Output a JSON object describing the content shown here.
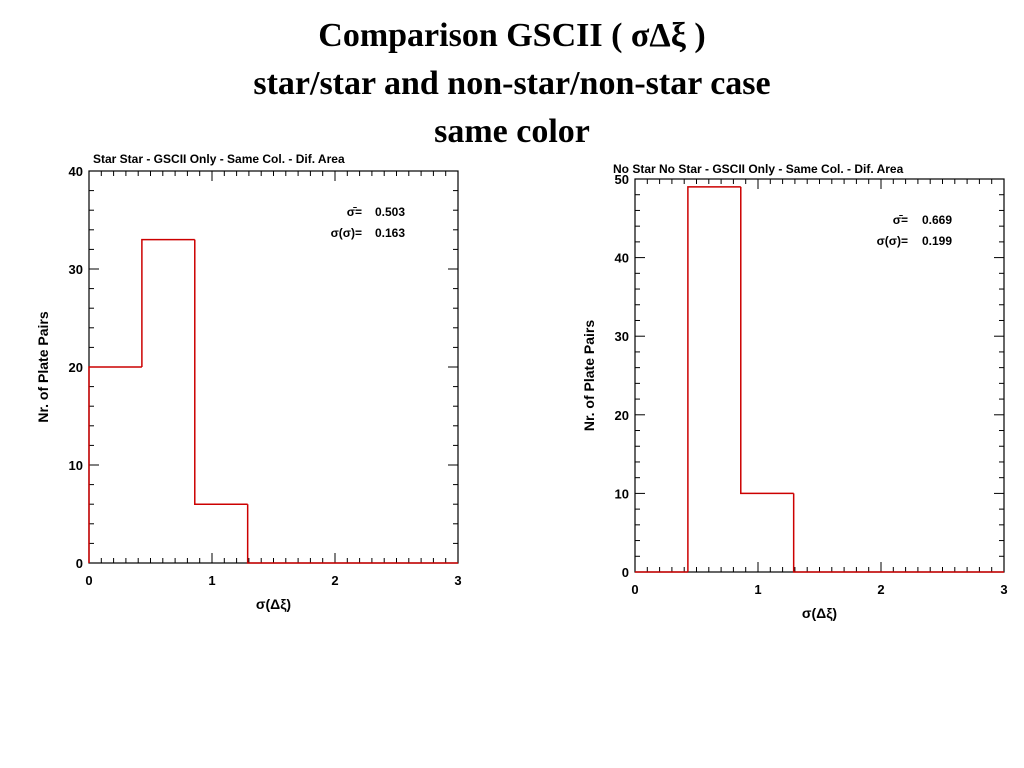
{
  "slide": {
    "title_line1": "Comparison GSCII ( σΔξ )",
    "title_line2": "star/star and non-star/non-star  case",
    "title_line3": "same color"
  },
  "chart_data": [
    {
      "type": "bar",
      "title": "Star Star - GSCII Only - Same Col. - Dif. Area",
      "xlabel": "σ(Δξ)",
      "ylabel": "Nr. of Plate Pairs",
      "xlim": [
        0,
        3
      ],
      "ylim": [
        0,
        40
      ],
      "xticks": [
        0,
        1,
        2,
        3
      ],
      "yticks": [
        0,
        10,
        20,
        30,
        40
      ],
      "bins": [
        {
          "x0": 0.0,
          "x1": 0.43,
          "count": 20
        },
        {
          "x0": 0.43,
          "x1": 0.86,
          "count": 33
        },
        {
          "x0": 0.86,
          "x1": 1.29,
          "count": 6
        },
        {
          "x0": 1.29,
          "x1": 3.0,
          "count": 0
        }
      ],
      "stats": [
        {
          "label": "σ̄=",
          "value": "0.503"
        },
        {
          "label": "σ(σ)=",
          "value": "0.163"
        }
      ],
      "color": "#cc0000",
      "grid": false
    },
    {
      "type": "bar",
      "title": "No Star No Star - GSCII Only - Same Col. - Dif. Area",
      "xlabel": "σ(Δξ)",
      "ylabel": "Nr. of Plate Pairs",
      "xlim": [
        0,
        3
      ],
      "ylim": [
        0,
        50
      ],
      "xticks": [
        0,
        1,
        2,
        3
      ],
      "yticks": [
        0,
        10,
        20,
        30,
        40,
        50
      ],
      "bins": [
        {
          "x0": 0.0,
          "x1": 0.43,
          "count": 0
        },
        {
          "x0": 0.43,
          "x1": 0.86,
          "count": 49
        },
        {
          "x0": 0.86,
          "x1": 1.29,
          "count": 10
        },
        {
          "x0": 1.29,
          "x1": 3.0,
          "count": 0
        }
      ],
      "stats": [
        {
          "label": "σ̄=",
          "value": "0.669"
        },
        {
          "label": "σ(σ)=",
          "value": "0.199"
        }
      ],
      "color": "#cc0000",
      "grid": false
    }
  ]
}
